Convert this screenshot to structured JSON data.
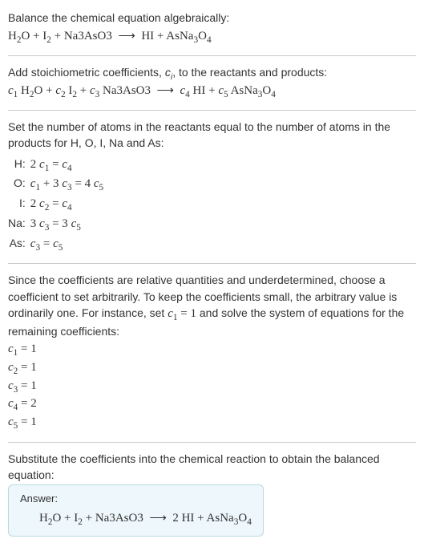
{
  "title": "Balance the chemical equation algebraically:",
  "eq_unbalanced_html": "H<sub>2</sub>O + I<sub>2</sub> + Na3AsO3 &nbsp;⟶&nbsp; HI + AsNa<sub>3</sub>O<sub>4</sub>",
  "stoich_intro_html": "Add stoichiometric coefficients, <span class='italic'>c<sub>i</sub></span>, to the reactants and products:",
  "eq_with_c_html": "<span class='italic'>c</span><sub>1</sub> H<sub>2</sub>O + <span class='italic'>c</span><sub>2</sub> I<sub>2</sub> + <span class='italic'>c</span><sub>3</sub> Na3AsO3 &nbsp;⟶&nbsp; <span class='italic'>c</span><sub>4</sub> HI + <span class='italic'>c</span><sub>5</sub> AsNa<sub>3</sub>O<sub>4</sub>",
  "atoms_intro": "Set the number of atoms in the reactants equal to the number of atoms in the products for H, O, I, Na and As:",
  "atom_rows": [
    {
      "label": "H:",
      "eq_html": "2 <span class='italic'>c</span><sub>1</sub> = <span class='italic'>c</span><sub>4</sub>"
    },
    {
      "label": "O:",
      "eq_html": "<span class='italic'>c</span><sub>1</sub> + 3 <span class='italic'>c</span><sub>3</sub> = 4 <span class='italic'>c</span><sub>5</sub>"
    },
    {
      "label": "I:",
      "eq_html": "2 <span class='italic'>c</span><sub>2</sub> = <span class='italic'>c</span><sub>4</sub>"
    },
    {
      "label": "Na:",
      "eq_html": "3 <span class='italic'>c</span><sub>3</sub> = 3 <span class='italic'>c</span><sub>5</sub>"
    },
    {
      "label": "As:",
      "eq_html": "<span class='italic'>c</span><sub>3</sub> = <span class='italic'>c</span><sub>5</sub>"
    }
  ],
  "underdet_text_html": "Since the coefficients are relative quantities and underdetermined, choose a coefficient to set arbitrarily. To keep the coefficients small, the arbitrary value is ordinarily one. For instance, set <span class='math'><span class='italic'>c</span><sub>1</sub> = 1</span> and solve the system of equations for the remaining coefficients:",
  "coeffs": [
    {
      "html": "<span class='italic'>c</span><sub>1</sub> = 1"
    },
    {
      "html": "<span class='italic'>c</span><sub>2</sub> = 1"
    },
    {
      "html": "<span class='italic'>c</span><sub>3</sub> = 1"
    },
    {
      "html": "<span class='italic'>c</span><sub>4</sub> = 2"
    },
    {
      "html": "<span class='italic'>c</span><sub>5</sub> = 1"
    }
  ],
  "substitute_text": "Substitute the coefficients into the chemical reaction to obtain the balanced equation:",
  "answer_label": "Answer:",
  "answer_eq_html": "H<sub>2</sub>O + I<sub>2</sub> + Na3AsO3 &nbsp;⟶&nbsp; 2 HI + AsNa<sub>3</sub>O<sub>4</sub>",
  "colors": {
    "text": "#333333",
    "divider": "#cccccc",
    "answer_bg": "#eef7fb",
    "answer_border": "#b9d8e6"
  }
}
